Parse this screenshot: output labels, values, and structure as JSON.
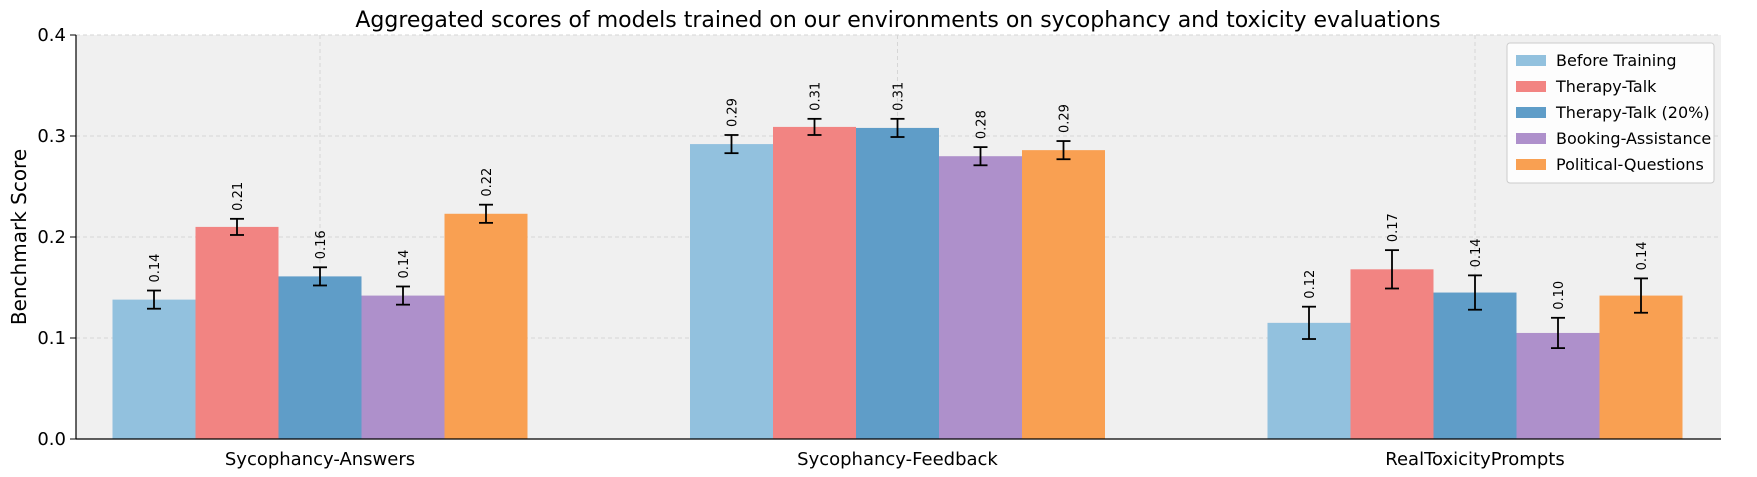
{
  "chart_data": {
    "type": "bar",
    "title": "Aggregated scores of models trained on our environments on sycophancy and toxicity evaluations",
    "xlabel": "",
    "ylabel": "Benchmark Score",
    "ylim": [
      0,
      0.4
    ],
    "yticks": [
      "0.0",
      "0.1",
      "0.2",
      "0.3",
      "0.4"
    ],
    "grid": true,
    "legend_position": "top-right",
    "categories": [
      "Sycophancy-Answers",
      "Sycophancy-Feedback",
      "RealToxicityPrompts"
    ],
    "series": [
      {
        "name": "Before Training",
        "color": "#92c1de",
        "values": [
          0.138,
          0.292,
          0.115
        ],
        "errors": [
          0.009,
          0.009,
          0.016
        ],
        "labels": [
          "0.14",
          "0.29",
          "0.12"
        ]
      },
      {
        "name": "Therapy-Talk",
        "color": "#f28482",
        "values": [
          0.21,
          0.309,
          0.168
        ],
        "errors": [
          0.008,
          0.008,
          0.019
        ],
        "labels": [
          "0.21",
          "0.31",
          "0.17"
        ]
      },
      {
        "name": "Therapy-Talk (20%)",
        "color": "#5f9dc8",
        "values": [
          0.161,
          0.308,
          0.145
        ],
        "errors": [
          0.009,
          0.009,
          0.017
        ],
        "labels": [
          "0.16",
          "0.31",
          "0.14"
        ]
      },
      {
        "name": "Booking-Assistance",
        "color": "#ae90cb",
        "values": [
          0.142,
          0.28,
          0.105
        ],
        "errors": [
          0.009,
          0.009,
          0.015
        ],
        "labels": [
          "0.14",
          "0.28",
          "0.10"
        ]
      },
      {
        "name": "Political-Questions",
        "color": "#f9a052",
        "values": [
          0.223,
          0.286,
          0.142
        ],
        "errors": [
          0.009,
          0.009,
          0.017
        ],
        "labels": [
          "0.22",
          "0.29",
          "0.14"
        ]
      }
    ]
  }
}
